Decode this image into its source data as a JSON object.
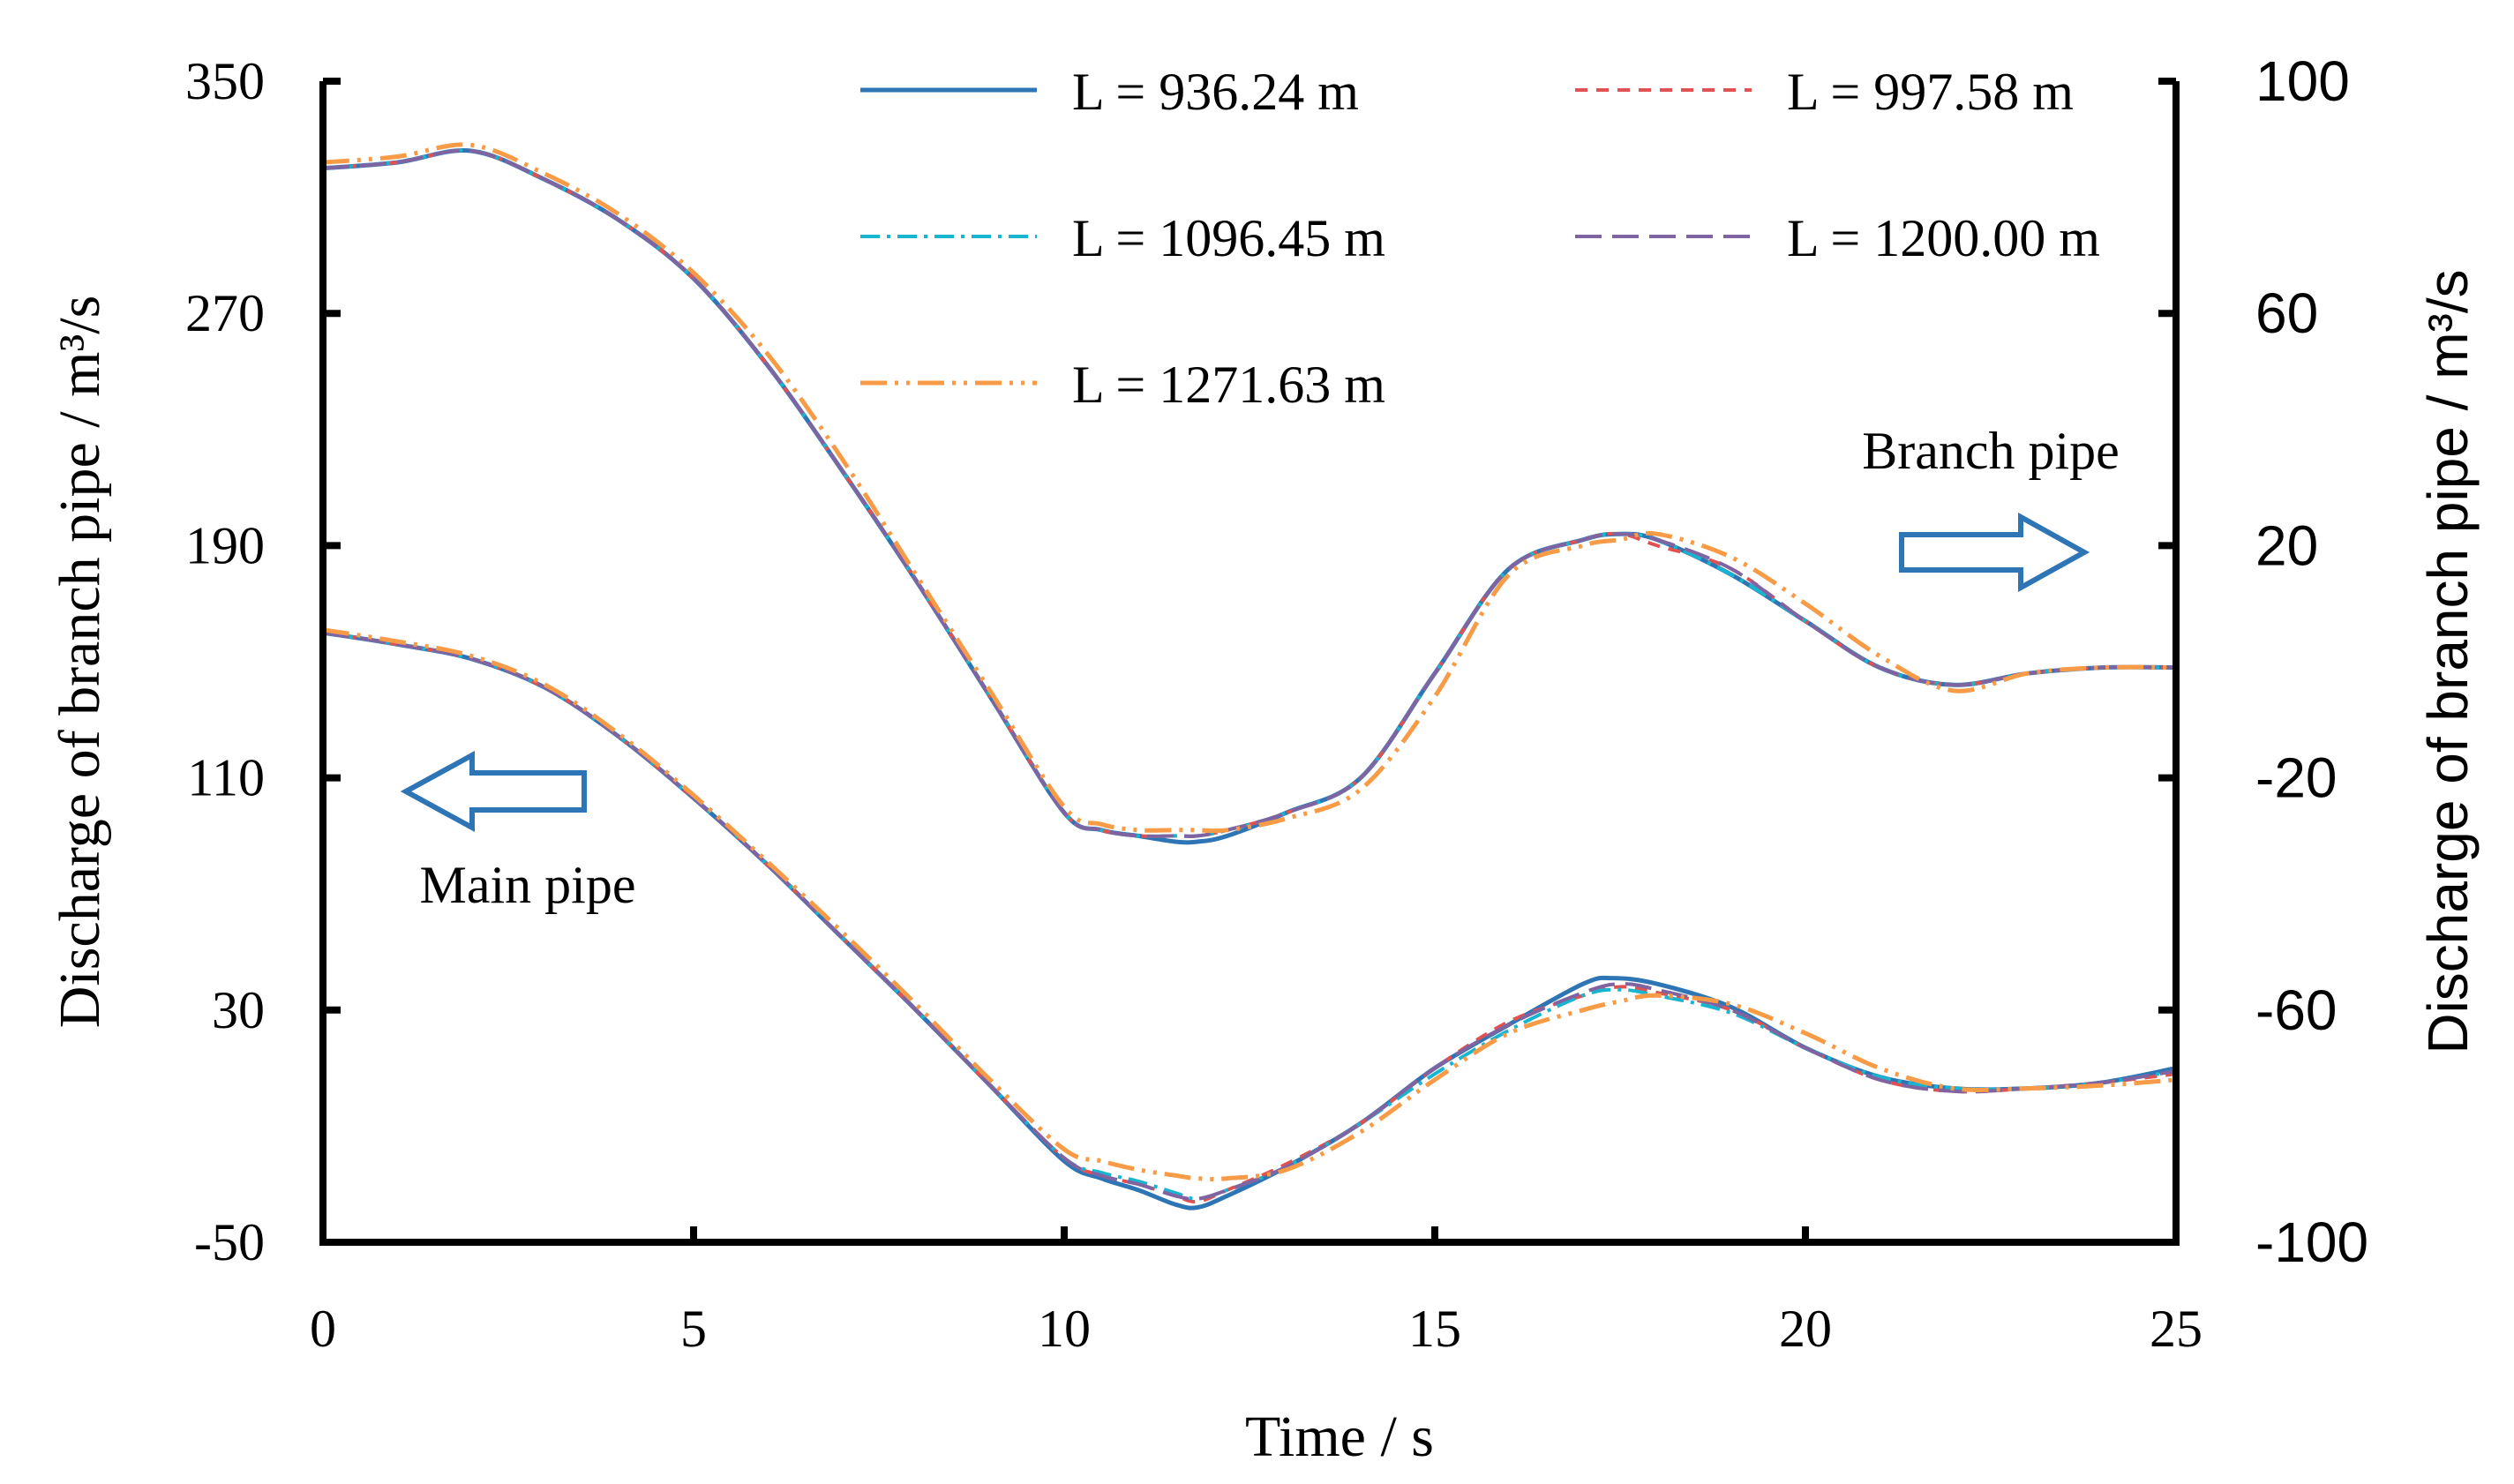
{
  "chart_data": {
    "type": "line",
    "xlabel": "Time / s",
    "ylabel_left": "Discharge of branch pipe / m³/s",
    "ylabel_right": "Discharge of branch pipe / m³/s",
    "xlim": [
      0,
      25
    ],
    "ylim_left": [
      -50,
      350
    ],
    "ylim_right": [
      -100,
      100
    ],
    "x_ticks": [
      "0",
      "5",
      "10",
      "15",
      "20",
      "25"
    ],
    "y_ticks_left": [
      "350",
      "270",
      "190",
      "110",
      "30",
      "-50"
    ],
    "y_ticks_right": [
      "100",
      "60",
      "20",
      "-20",
      "-60",
      "-100"
    ],
    "annotations": {
      "main_pipe": "Main pipe",
      "branch_pipe": "Branch pipe"
    },
    "colors": {
      "blue": "#2E75B6",
      "red": "#E05252",
      "cyan": "#17B5CF",
      "purple": "#8064A2",
      "orange": "#F79B46",
      "arrow": "#2E75B6"
    },
    "series": [
      {
        "name": "L = 936.24 m",
        "color": "#2E75B6",
        "dash": "",
        "width": 5,
        "main_pipe": {
          "x": [
            0,
            1,
            2,
            3,
            4,
            5,
            6,
            7,
            8,
            9,
            10,
            10.5,
            11,
            11.5,
            11.8,
            12.2,
            13,
            14,
            15,
            16,
            17,
            17.4,
            18,
            19,
            20,
            21,
            22,
            23,
            24,
            25
          ],
          "y": [
            160,
            156,
            151,
            141,
            124,
            103,
            80,
            55,
            30,
            4,
            -22,
            -28,
            -32,
            -37,
            -38,
            -34,
            -24,
            -9,
            10,
            25,
            39,
            41,
            39,
            31,
            17,
            7,
            3,
            3,
            5,
            10
          ]
        },
        "branch_pipe": {
          "x": [
            0,
            1,
            2,
            3,
            4,
            5,
            6,
            7,
            8,
            9,
            10,
            10.5,
            11,
            11.5,
            11.8,
            12.2,
            13,
            14,
            15,
            16,
            17,
            17.5,
            18,
            19,
            20,
            21,
            22,
            23,
            24,
            25
          ],
          "y": [
            85,
            86,
            88,
            83,
            76,
            66,
            51,
            33,
            14,
            -6,
            -26,
            -29,
            -30,
            -31,
            -31,
            -30,
            -26,
            -20,
            -2,
            16,
            21,
            22,
            21,
            15,
            7,
            -1,
            -4,
            -2,
            -1,
            -1
          ]
        }
      },
      {
        "name": "L = 997.58 m",
        "color": "#E05252",
        "dash": "14,10",
        "width": 4,
        "main_pipe": {
          "x": [
            0,
            1,
            2,
            3,
            4,
            5,
            6,
            7,
            8,
            9,
            10,
            10.5,
            11,
            11.5,
            11.8,
            12.2,
            13,
            14,
            15,
            16,
            17,
            17.5,
            18,
            19,
            20,
            21,
            22,
            23,
            24,
            25
          ],
          "y": [
            160,
            156,
            151,
            141,
            124,
            103,
            80,
            55,
            30,
            4,
            -21,
            -27,
            -30,
            -34,
            -36,
            -32,
            -23,
            -9,
            10,
            26,
            35,
            38,
            36,
            30,
            17,
            6,
            2,
            3,
            5,
            8
          ]
        },
        "branch_pipe": {
          "x": [
            0,
            1,
            2,
            3,
            4,
            5,
            6,
            7,
            8,
            9,
            10,
            10.5,
            11,
            11.5,
            11.8,
            12.2,
            13,
            14,
            15,
            16,
            17,
            17.5,
            18,
            19,
            20,
            21,
            22,
            23,
            24,
            25
          ],
          "y": [
            85,
            86,
            88,
            83,
            76,
            66,
            51,
            33,
            14,
            -6,
            -26,
            -29,
            -30,
            -30,
            -30,
            -29,
            -26,
            -20,
            -2,
            16,
            21,
            22,
            20,
            16,
            7,
            -1,
            -4,
            -2,
            -1,
            -1
          ]
        }
      },
      {
        "name": "L = 1096.45 m",
        "color": "#17B5CF",
        "dash": "22,8,4,8",
        "width": 4,
        "main_pipe": {
          "x": [
            0,
            1,
            2,
            3,
            4,
            5,
            6,
            7,
            8,
            9,
            10,
            10.5,
            11,
            11.5,
            11.8,
            12.2,
            13,
            14,
            15,
            16,
            17,
            17.5,
            18,
            19,
            20,
            21,
            22,
            23,
            24,
            25
          ],
          "y": [
            160,
            156,
            151,
            141,
            124,
            103,
            80,
            55,
            30,
            4,
            -21,
            -26,
            -29,
            -33,
            -35,
            -32,
            -24,
            -9,
            8,
            23,
            35,
            37,
            35,
            29,
            17,
            7,
            3,
            3,
            5,
            9
          ]
        },
        "branch_pipe": {
          "x": [
            0,
            1,
            2,
            3,
            4,
            5,
            6,
            7,
            8,
            9,
            10,
            10.5,
            11,
            11.5,
            11.8,
            12.2,
            13,
            14,
            15,
            16,
            17,
            17.5,
            18,
            19,
            20,
            21,
            22,
            23,
            24,
            25
          ],
          "y": [
            85,
            86,
            88,
            83,
            76,
            66,
            51,
            33,
            14,
            -6,
            -26,
            -29,
            -30,
            -30,
            -30,
            -29,
            -26,
            -20,
            -2,
            16,
            21,
            22,
            21,
            15,
            7,
            -1,
            -4,
            -2,
            -1,
            -1
          ]
        }
      },
      {
        "name": "L = 1200.00 m",
        "color": "#8064A2",
        "dash": "30,12",
        "width": 4,
        "main_pipe": {
          "x": [
            0,
            1,
            2,
            3,
            4,
            5,
            6,
            7,
            8,
            9,
            10,
            10.5,
            11,
            11.5,
            11.8,
            12.2,
            13,
            14,
            15,
            16,
            17,
            17.5,
            18,
            19,
            20,
            21,
            22,
            23,
            24,
            25
          ],
          "y": [
            160,
            156,
            151,
            141,
            124,
            103,
            80,
            55,
            30,
            4,
            -21,
            -27,
            -30,
            -34,
            -35,
            -32,
            -24,
            -9,
            10,
            25,
            36,
            39,
            37,
            30,
            17,
            6,
            2,
            3,
            5,
            9
          ]
        },
        "branch_pipe": {
          "x": [
            0,
            1,
            2,
            3,
            4,
            5,
            6,
            7,
            8,
            9,
            10,
            10.5,
            11,
            11.5,
            11.8,
            12.2,
            13,
            14,
            15,
            16,
            17,
            17.5,
            18,
            19,
            20,
            21,
            22,
            23,
            24,
            25
          ],
          "y": [
            85,
            86,
            88,
            83,
            76,
            66,
            51,
            33,
            14,
            -6,
            -26,
            -29,
            -30,
            -30,
            -30,
            -29,
            -26,
            -20,
            -2,
            16,
            21,
            22,
            21,
            16,
            7,
            -1,
            -4,
            -2,
            -1,
            -1
          ]
        }
      },
      {
        "name": "L = 1271.63 m",
        "color": "#F79B46",
        "dash": "30,9,4,9,4,9",
        "width": 5,
        "main_pipe": {
          "x": [
            0,
            1,
            2,
            3,
            4,
            5,
            6,
            7,
            8,
            9,
            10,
            10.5,
            11,
            11.5,
            11.8,
            12.2,
            13,
            14,
            15,
            16,
            17,
            17.5,
            18,
            19,
            20,
            21,
            22,
            23,
            24,
            25
          ],
          "y": [
            161,
            157,
            152,
            142,
            125,
            104,
            81,
            57,
            32,
            6,
            -18,
            -22,
            -25,
            -27,
            -28,
            -28,
            -25,
            -12,
            6,
            22,
            30,
            33,
            35,
            32,
            22,
            10,
            3,
            3,
            4,
            6
          ]
        },
        "branch_pipe": {
          "x": [
            0,
            1,
            2,
            3,
            4,
            5,
            6,
            7,
            8,
            9,
            10,
            10.5,
            11,
            11.5,
            11.8,
            12.2,
            13,
            14,
            15,
            16,
            17,
            17.5,
            18,
            19,
            20,
            21,
            22,
            23,
            24,
            25
          ],
          "y": [
            86,
            87,
            89,
            84,
            77,
            67,
            53,
            35,
            15,
            -5,
            -25,
            -28,
            -29,
            -29,
            -29,
            -29,
            -27,
            -22,
            -6,
            15,
            20,
            21,
            22,
            18,
            10,
            1,
            -5,
            -2,
            -1,
            -1
          ]
        }
      }
    ]
  }
}
